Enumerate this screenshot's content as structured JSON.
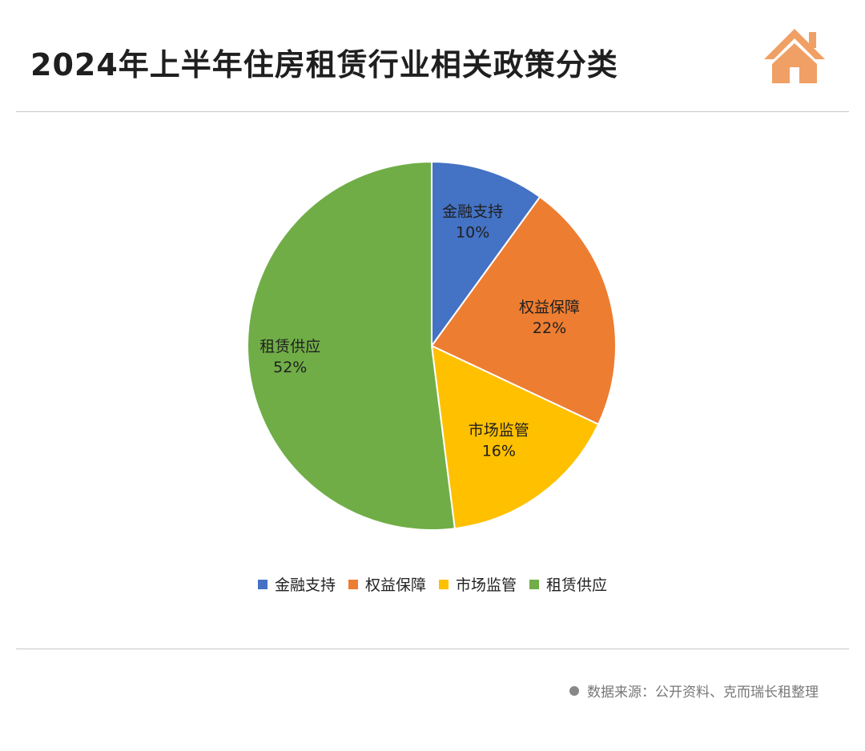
{
  "header": {
    "title": "2024年上半年住房租赁行业相关政策分类",
    "logo_icon": "house-icon",
    "logo_color": "#f0a064"
  },
  "chart_data": {
    "type": "pie",
    "title": "2024年上半年住房租赁行业相关政策分类",
    "slices": [
      {
        "label": "金融支持",
        "value": 10,
        "display": "10%",
        "color": "#4472c4"
      },
      {
        "label": "权益保障",
        "value": 22,
        "display": "22%",
        "color": "#ed7d31"
      },
      {
        "label": "市场监管",
        "value": 16,
        "display": "16%",
        "color": "#ffc000"
      },
      {
        "label": "租赁供应",
        "value": 52,
        "display": "52%",
        "color": "#70ad47"
      }
    ],
    "start": "12 o'clock",
    "direction": "clockwise",
    "legend_position": "bottom"
  },
  "footer": {
    "source": "数据来源：公开资料、克而瑞长租整理"
  }
}
